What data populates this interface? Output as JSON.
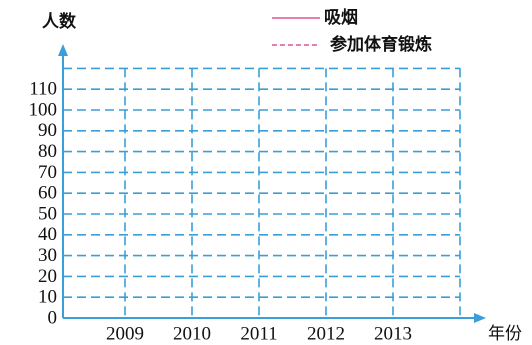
{
  "chart_data": {
    "type": "line",
    "y_label": "人数",
    "x_label": "年份",
    "categories": [
      "2009",
      "2010",
      "2011",
      "2012",
      "2013"
    ],
    "series": [
      {
        "name": "吸烟",
        "color": "#e0559a",
        "style": "solid",
        "values": [
          null,
          null,
          null,
          null,
          null
        ]
      },
      {
        "name": "参加体育锻炼",
        "color": "#e0559a",
        "style": "dashed",
        "values": [
          null,
          null,
          null,
          null,
          null
        ]
      }
    ],
    "ylim": [
      0,
      120
    ],
    "yticks": [
      0,
      10,
      20,
      30,
      40,
      50,
      60,
      70,
      80,
      90,
      100,
      110
    ],
    "grid": true,
    "grid_color": "#3a9fd8",
    "axis_color": "#3a9fd8"
  }
}
